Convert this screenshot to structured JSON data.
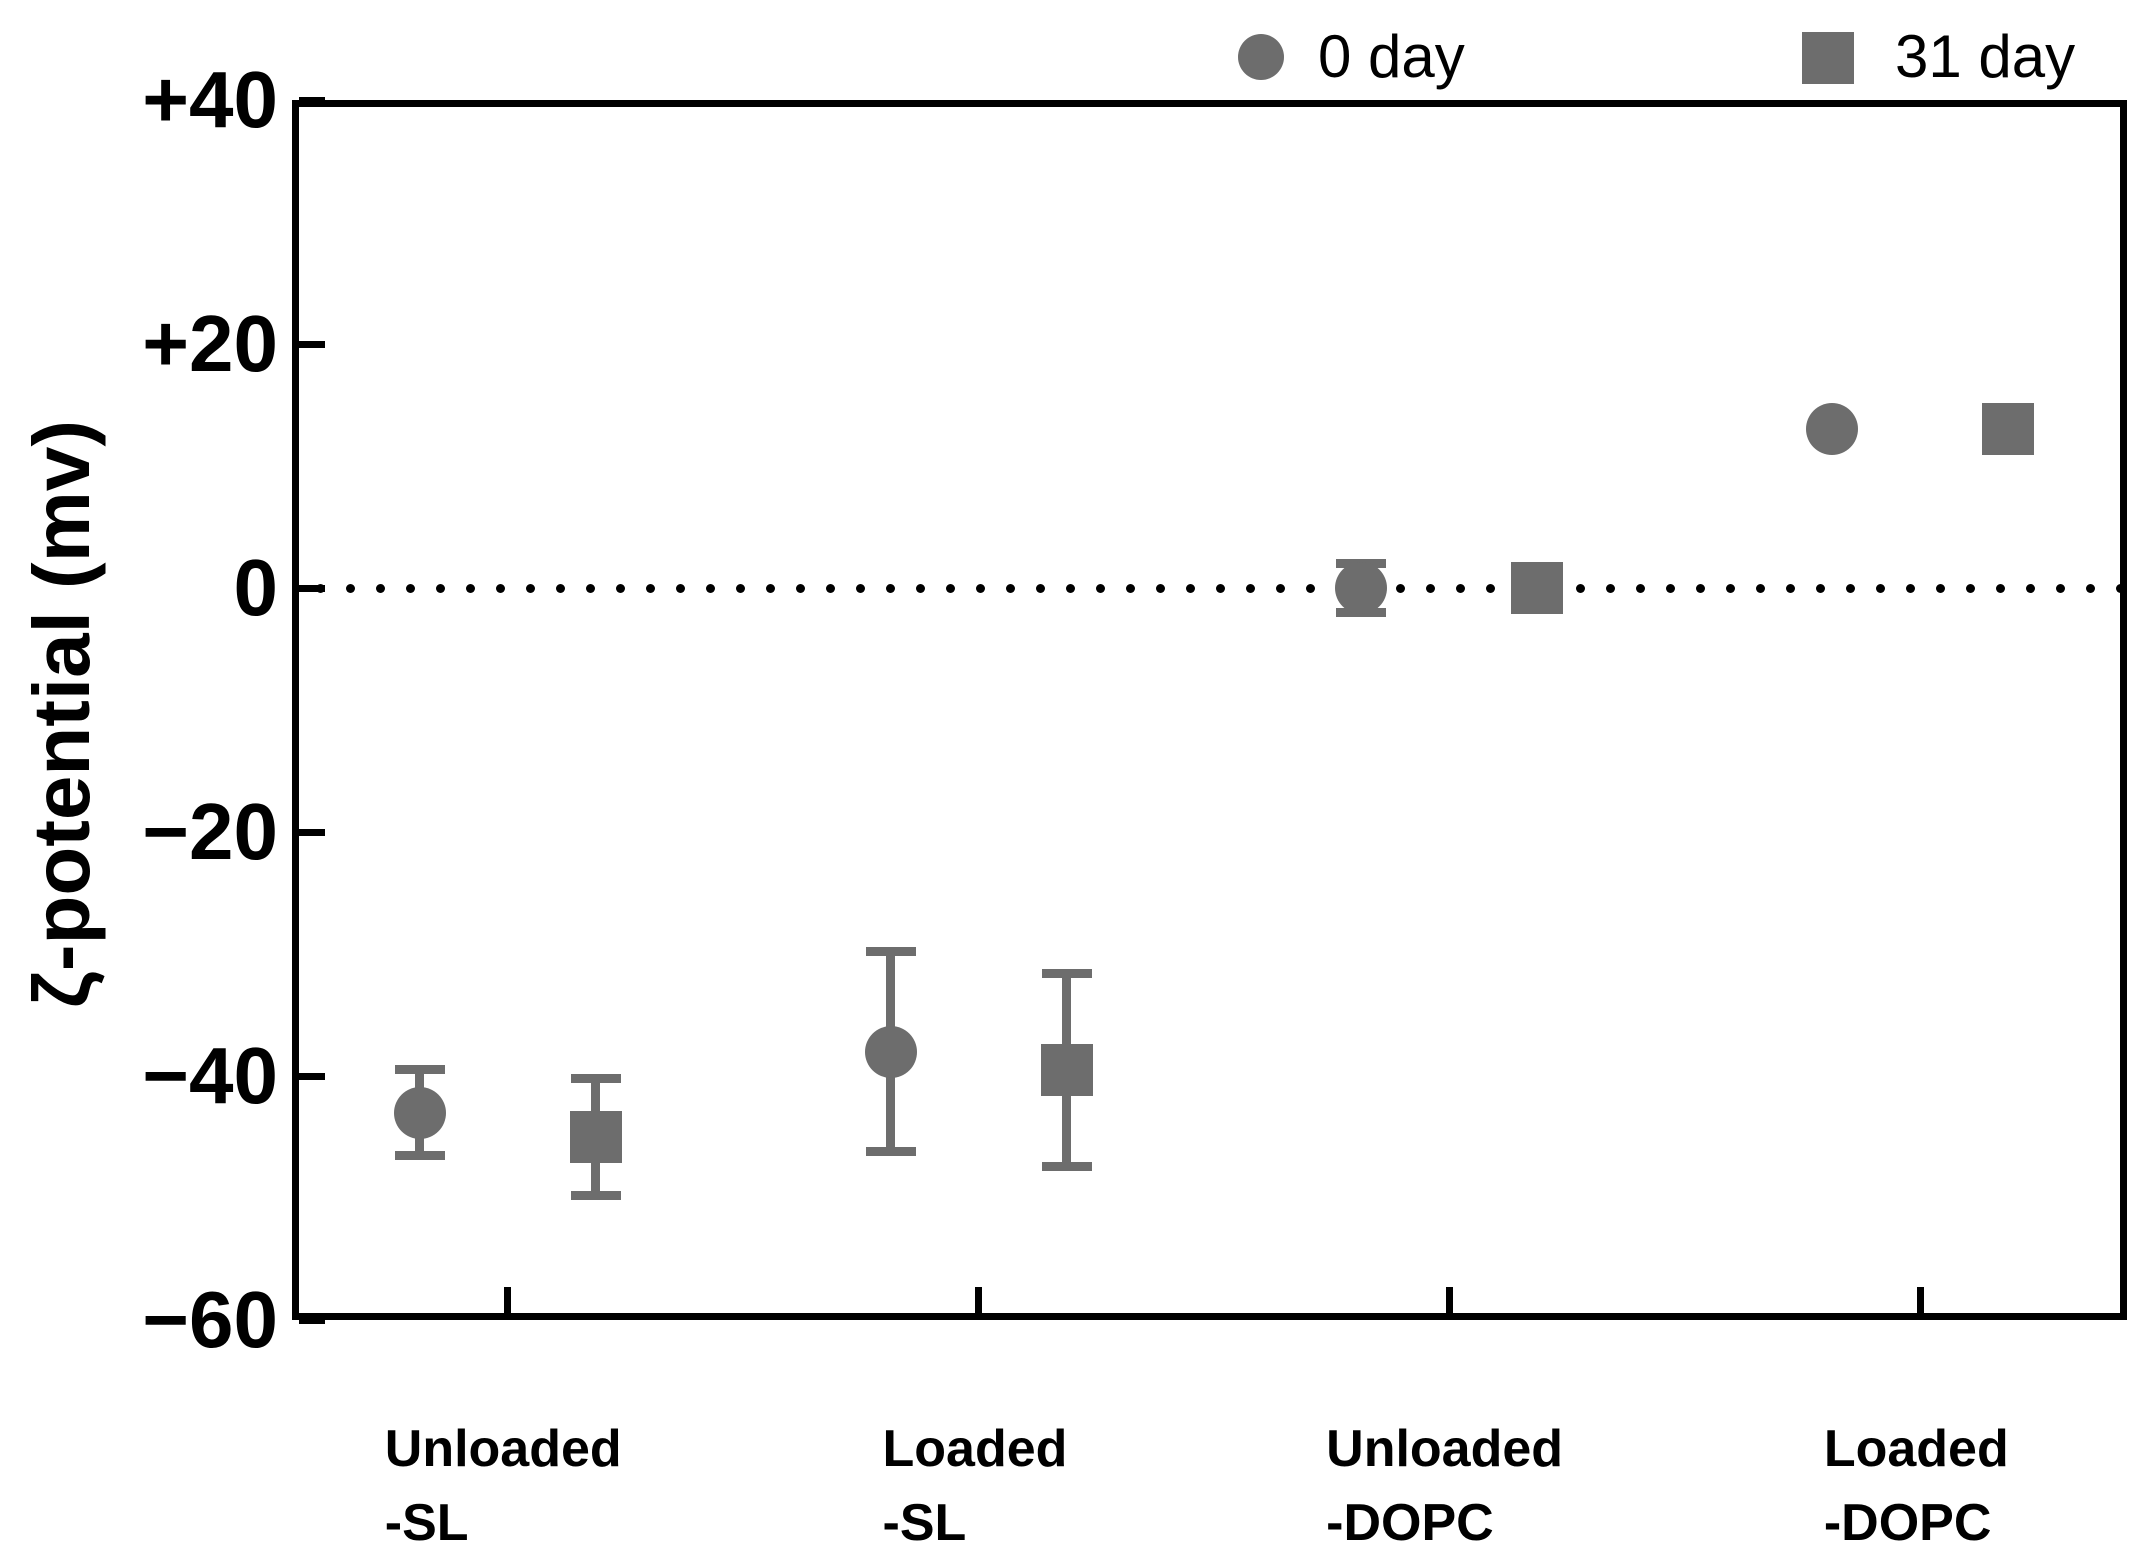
{
  "figure": {
    "background": "#ffffff",
    "axis_color": "#000000"
  },
  "chart_data": {
    "type": "scatter",
    "title": "",
    "xlabel": "",
    "ylabel": "ζ-potential (mv)",
    "ylim": [
      -60,
      40
    ],
    "grid": false,
    "zero_line": "dotted",
    "legend_position": "top-right",
    "colors": {
      "marker": "#6d6d6d",
      "error_bar": "#6d6d6d",
      "axis": "#000000",
      "zero_line_dots": "#000000"
    },
    "yticks": [
      {
        "label": "+40",
        "value": 40
      },
      {
        "label": "+20",
        "value": 20
      },
      {
        "label": "0",
        "value": 0
      },
      {
        "label": "−20",
        "value": -20
      },
      {
        "label": "−40",
        "value": -40
      },
      {
        "label": "−60",
        "value": -60
      }
    ],
    "categories": [
      {
        "lines": [
          "Unloaded",
          "-SL"
        ]
      },
      {
        "lines": [
          "Loaded",
          "-SL"
        ]
      },
      {
        "lines": [
          "Unloaded",
          "-DOPC"
        ]
      },
      {
        "lines": [
          "Loaded",
          "-DOPC"
        ]
      }
    ],
    "series": [
      {
        "name": "0 day",
        "marker": "circle",
        "values": [
          -43,
          -38,
          0,
          13
        ],
        "errors": [
          3.5,
          8.2,
          2,
          0
        ]
      },
      {
        "name": "31 day",
        "marker": "square",
        "values": [
          -45,
          -39.5,
          0,
          13
        ],
        "errors": [
          4.8,
          7.9,
          0,
          0
        ]
      }
    ]
  }
}
